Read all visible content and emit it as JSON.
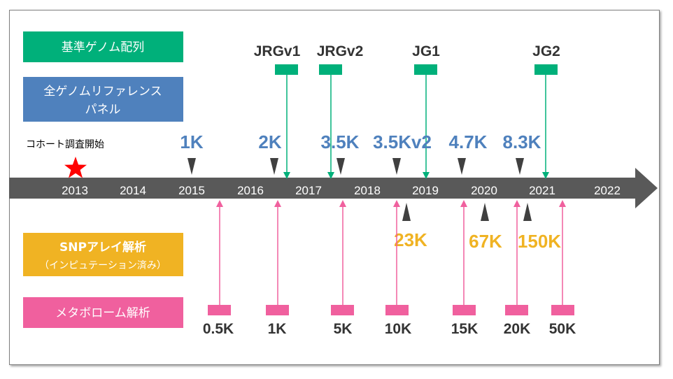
{
  "categories": {
    "reference_genome": {
      "label": "基準ゲノム配列",
      "color": "#00b07a"
    },
    "wgs_panel": {
      "line1": "全ゲノムリファレンス",
      "line2": "パネル",
      "color": "#4f81bd"
    },
    "snp_array": {
      "line1": "SNPアレイ解析",
      "line2": "（インピュテーション済み）",
      "color": "#f0b323"
    },
    "metabolome": {
      "label": "メタボローム解析",
      "color": "#f0609e"
    }
  },
  "cohort_start": {
    "label": "コホート調査開始",
    "year": "2013",
    "marker_color": "#ff0000"
  },
  "years": [
    "2013",
    "2014",
    "2015",
    "2016",
    "2017",
    "2018",
    "2019",
    "2020",
    "2021",
    "2022"
  ],
  "reference_versions": [
    "JRGv1",
    "JRGv2",
    "JG1",
    "JG2"
  ],
  "wgs_panel_sizes": [
    "1K",
    "2K",
    "3.5K",
    "3.5Kv2",
    "4.7K",
    "8.3K"
  ],
  "snp_array_sizes": [
    "23K",
    "67K",
    "150K"
  ],
  "metabolome_sizes": [
    "0.5K",
    "1K",
    "5K",
    "10K",
    "15K",
    "20K",
    "50K"
  ],
  "colors": {
    "timeline": "#595959",
    "triangle": "#404040"
  }
}
